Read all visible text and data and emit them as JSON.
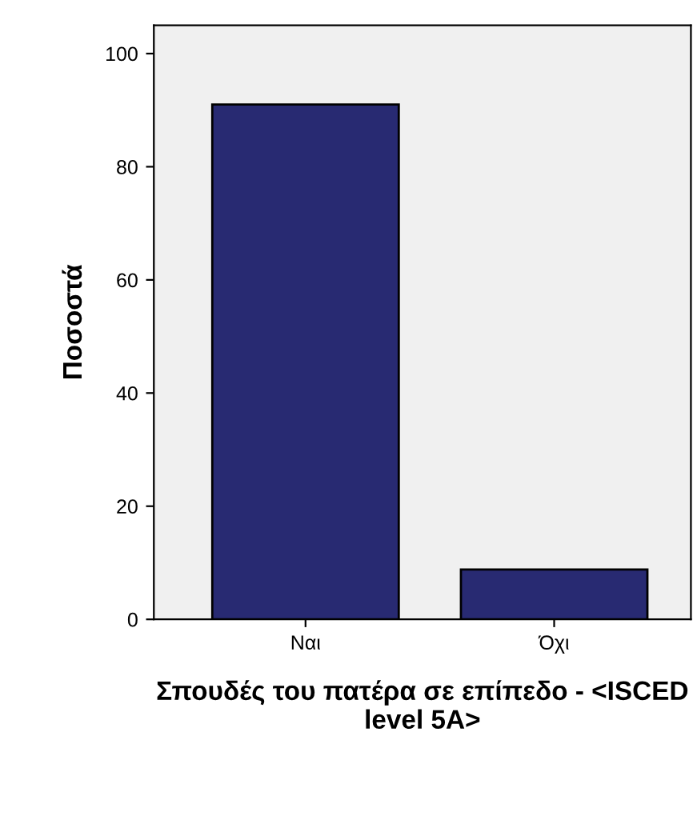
{
  "chart_data": {
    "type": "bar",
    "xlabel": "Σπουδές του πατέρα σε επίπεδο - <ISCED level 5A>",
    "ylabel": "Ποσοστά",
    "categories": [
      "Ναι",
      "Όχι"
    ],
    "values": [
      91.0,
      8.8
    ],
    "color": "#282a72",
    "ylim": [
      0,
      105
    ],
    "yticks": [
      0,
      20,
      40,
      60,
      80,
      100
    ],
    "grid": false,
    "legend": false
  }
}
